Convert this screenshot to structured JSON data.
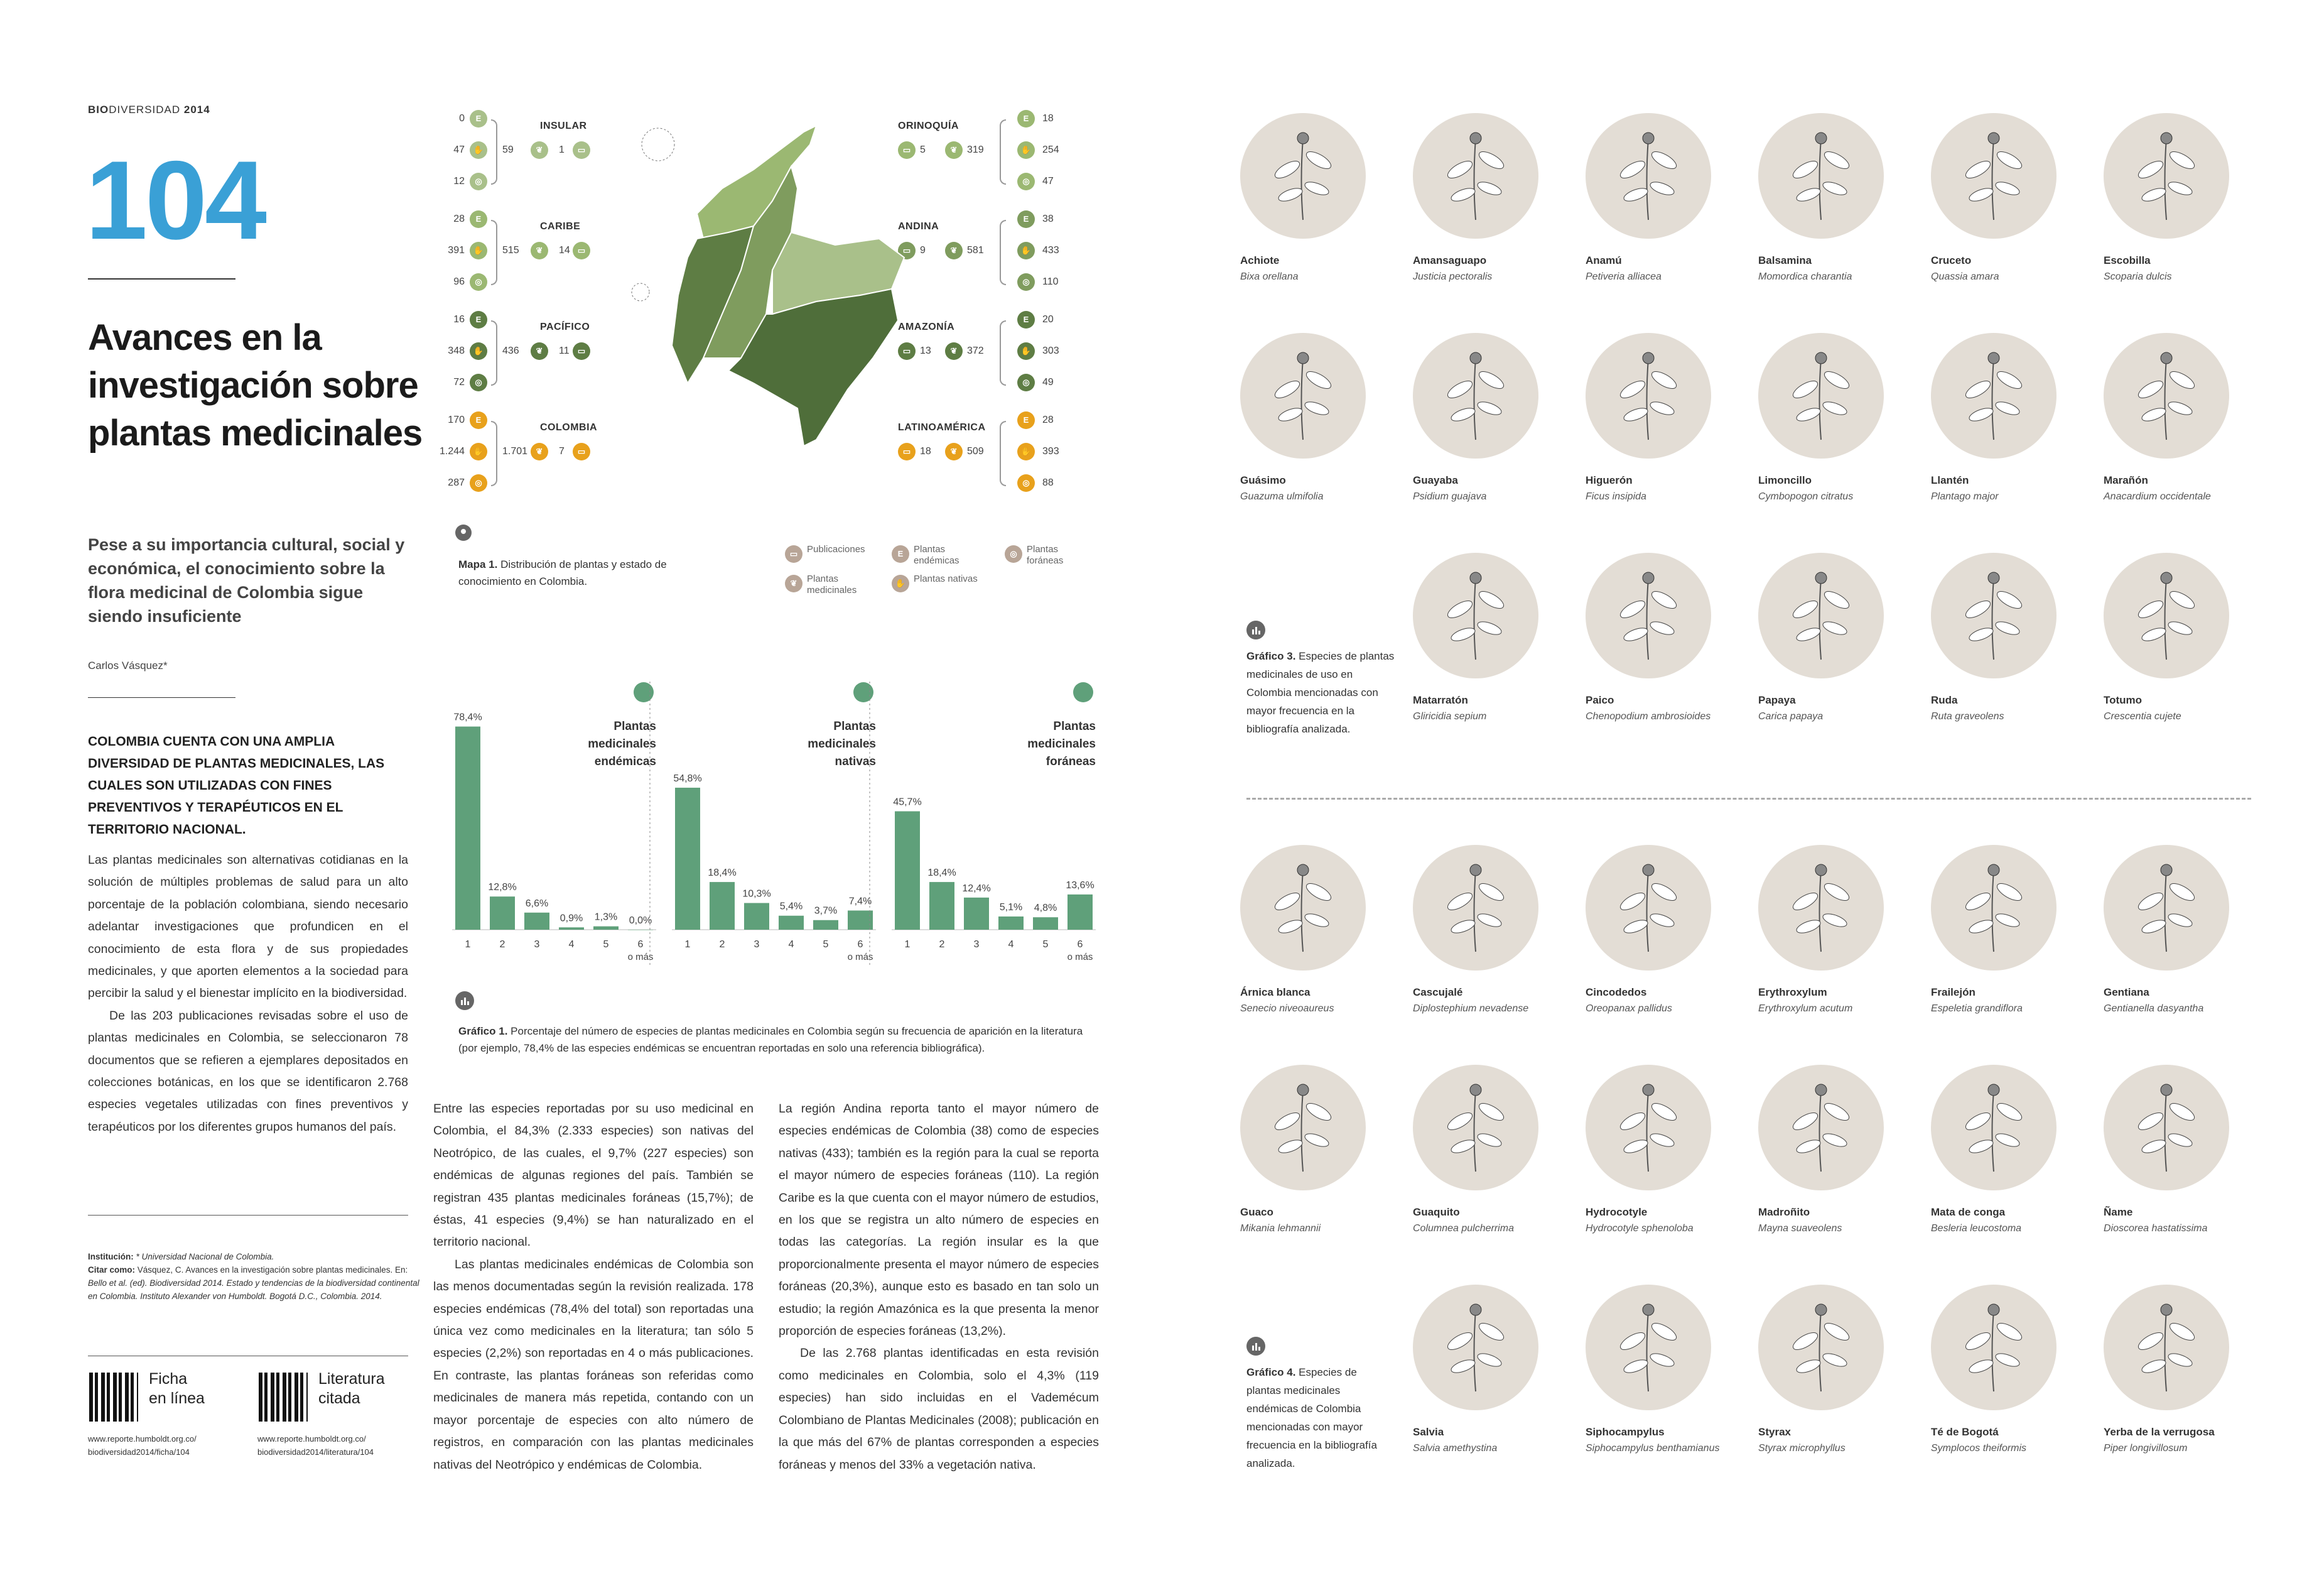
{
  "header": {
    "runhead_bold": "BIO",
    "runhead_rest": "DIVERSIDAD",
    "year": "2014",
    "page_number": "104"
  },
  "article": {
    "title": "Avances en la investigación sobre plantas medicinales",
    "subtitle": "Pese a su importancia cultural, social y económica, el conocimiento sobre la flora medicinal de Colombia sigue siendo insuficiente",
    "author": "Carlos Vásquez*",
    "lead": "COLOMBIA CUENTA CON UNA AMPLIA DIVERSIDAD DE PLANTAS MEDICINALES, LAS CUALES SON UTILIZADAS CON FINES PREVENTIVOS Y TERAPÉUTICOS EN EL TERRITORIO NACIONAL.",
    "col1_p1": "Las plantas medicinales son alternativas cotidianas en la solución de múltiples problemas de salud para un alto porcentaje de la población colombiana, siendo necesario adelantar investigaciones que profundicen en el conocimiento de esta flora y de sus propiedades medicinales, y que aporten elementos a la sociedad para percibir la salud y el bienestar implícito en la biodiversidad.",
    "col1_p2": "De las 203 publicaciones revisadas sobre el uso de plantas medicinales en Colombia, se seleccionaron 78 documentos que se refieren a ejemplares depositados en colecciones botánicas, en los que se identificaron 2.768 especies vegetales utilizadas con fines preventivos y terapéuticos por los diferentes grupos humanos del país.",
    "col2_p1": "Entre las especies reportadas por su uso medicinal en Colombia, el 84,3% (2.333 especies) son nativas del Neotrópico, de las cuales, el 9,7% (227 especies) son endémicas de algunas regiones del país. También se registran 435 plantas medicinales foráneas (15,7%); de éstas, 41 especies (9,4%) se han naturalizado en el territorio nacional.",
    "col2_p2": "Las plantas medicinales endémicas de Colombia son las menos documentadas según la revisión realizada. 178 especies endémicas (78,4% del total) son reportadas una única vez como medicinales en la literatura; tan sólo 5 especies (2,2%) son reportadas en 4 o más publicaciones. En contraste, las plantas foráneas son referidas como medicinales de manera más repetida, contando con un mayor porcentaje de especies con alto número de registros, en comparación con las plantas medicinales nativas del Neotrópico y endémicas de Colombia.",
    "col3_p1": "La región Andina reporta tanto el mayor número de especies endémicas de Colombia (38) como de especies nativas (433); también es la región para la cual se reporta el mayor número de especies foráneas (110). La región Caribe es la que cuenta con el mayor número de estudios, en los que se registra un alto número de especies en todas las categorías. La región insular es la que proporcionalmente presenta el mayor número de especies foráneas (20,3%), aunque esto es basado en tan solo un estudio; la región Amazónica es la que presenta la menor proporción de especies foráneas (13,2%).",
    "col3_p2": "De las 2.768 plantas identificadas en esta revisión como medicinales en Colombia, solo el 4,3% (119 especies) han sido incluidas en el Vademécum Colombiano de Plantas Medicinales (2008); publicación en la que más del 67% de plantas corresponden a especies foráneas y menos del 33% a vegetación nativa."
  },
  "credits": {
    "inst_label": "Institución:",
    "inst_value": "* Universidad Nacional de Colombia.",
    "cite_label": "Citar como:",
    "cite_line1": "Vásquez, C. Avances en la investigación sobre plantas medicinales. En:",
    "cite_line2": "Bello et al. (ed). Biodiversidad 2014. Estado y tendencias de la biodiversidad continental",
    "cite_line3": "en Colombia. Instituto Alexander von Humboldt. Bogotá D.C., Colombia. 2014."
  },
  "qr": [
    {
      "label1": "Ficha",
      "label2": "en línea",
      "url1": "www.reporte.humboldt.org.co/",
      "url2": "biodiversidad2014/ficha/104"
    },
    {
      "label1": "Literatura",
      "label2": "citada",
      "url1": "www.reporte.humboldt.org.co/",
      "url2": "biodiversidad2014/literatura/104"
    }
  ],
  "map": {
    "caption_bold": "Mapa 1.",
    "caption": "Distribución de plantas y estado de conocimiento en Colombia.",
    "legend": [
      {
        "icon": "book-icon",
        "label": "Publicaciones"
      },
      {
        "icon": "endemic-icon",
        "label": "Plantas endémicas"
      },
      {
        "icon": "globe-icon",
        "label": "Plantas foráneas"
      },
      {
        "icon": "leaf-icon",
        "label": "Plantas medicinales"
      },
      {
        "icon": "native-icon",
        "label": "Plantas nativas"
      }
    ],
    "left_regions": [
      {
        "name": "INSULAR",
        "endemic": "0",
        "native": "47",
        "foreign": "12",
        "medicinal": "59",
        "publications": "1",
        "color": "#a9c08a"
      },
      {
        "name": "CARIBE",
        "endemic": "28",
        "native": "391",
        "foreign": "96",
        "medicinal": "515",
        "publications": "14",
        "color": "#9bb872"
      },
      {
        "name": "PACÍFICO",
        "endemic": "16",
        "native": "348",
        "foreign": "72",
        "medicinal": "436",
        "publications": "11",
        "color": "#5e7d44"
      },
      {
        "name": "COLOMBIA",
        "endemic": "170",
        "native": "1.244",
        "foreign": "287",
        "medicinal": "1.701",
        "publications": "7",
        "color": "#e8a11c"
      }
    ],
    "right_regions": [
      {
        "name": "ORINOQUÍA",
        "endemic": "18",
        "native": "254",
        "foreign": "47",
        "medicinal": "319",
        "publications": "5",
        "color": "#9bb872"
      },
      {
        "name": "ANDINA",
        "endemic": "38",
        "native": "433",
        "foreign": "110",
        "medicinal": "581",
        "publications": "9",
        "color": "#7f9c5e"
      },
      {
        "name": "AMAZONÍA",
        "endemic": "20",
        "native": "303",
        "foreign": "49",
        "medicinal": "372",
        "publications": "13",
        "color": "#5e7d44"
      },
      {
        "name": "LATINOAMÉRICA",
        "endemic": "28",
        "native": "393",
        "foreign": "88",
        "medicinal": "509",
        "publications": "18",
        "color": "#e8a11c"
      }
    ]
  },
  "chart_data": [
    {
      "type": "bar",
      "title": "Plantas medicinales endémicas",
      "categories": [
        "1",
        "2",
        "3",
        "4",
        "5",
        "6"
      ],
      "values": [
        78.4,
        12.8,
        6.6,
        0.9,
        1.3,
        0.0
      ],
      "labels": [
        "78,4%",
        "12,8%",
        "6,6%",
        "0,9%",
        "1,3%",
        "0,0%"
      ],
      "last_suffix": "o más",
      "ylim": [
        0,
        80
      ]
    },
    {
      "type": "bar",
      "title": "Plantas medicinales nativas",
      "categories": [
        "1",
        "2",
        "3",
        "4",
        "5",
        "6"
      ],
      "values": [
        54.8,
        18.4,
        10.3,
        5.4,
        3.7,
        7.4
      ],
      "labels": [
        "54,8%",
        "18,4%",
        "10,3%",
        "5,4%",
        "3,7%",
        "7,4%"
      ],
      "last_suffix": "o más",
      "ylim": [
        0,
        80
      ]
    },
    {
      "type": "bar",
      "title": "Plantas medicinales foráneas",
      "categories": [
        "1",
        "2",
        "3",
        "4",
        "5",
        "6"
      ],
      "values": [
        45.7,
        18.4,
        12.4,
        5.1,
        4.8,
        13.6
      ],
      "labels": [
        "45,7%",
        "18,4%",
        "12,4%",
        "5,1%",
        "4,8%",
        "13,6%"
      ],
      "last_suffix": "o más",
      "ylim": [
        0,
        80
      ]
    }
  ],
  "chart_titles": [
    {
      "l1": "Plantas",
      "l2": "medicinales",
      "l3": "endémicas",
      "icon": "E"
    },
    {
      "l1": "Plantas",
      "l2": "medicinales",
      "l3": "nativas",
      "icon": ""
    },
    {
      "l1": "Plantas",
      "l2": "medicinales",
      "l3": "foráneas",
      "icon": ""
    }
  ],
  "grafico1": {
    "bold": "Gráfico 1.",
    "text": "Porcentaje del número de especies de plantas medicinales en Colombia según su frecuencia de aparición en la literatura (por ejemplo, 78,4% de las especies endémicas se encuentran reportadas en solo una referencia bibliográfica)."
  },
  "grafico3": {
    "bold": "Gráfico 3.",
    "text": "Especies de plantas medicinales de uso en Colombia mencionadas con mayor frecuencia en la bibliografía analizada."
  },
  "grafico4": {
    "bold": "Gráfico 4.",
    "text": "Especies de plantas medicinales endémicas de Colombia mencionadas con mayor frecuencia en la bibliografía analizada."
  },
  "plants_top": [
    {
      "name": "Achiote",
      "sci": "Bixa orellana"
    },
    {
      "name": "Amansaguapo",
      "sci": "Justicia pectoralis"
    },
    {
      "name": "Anamú",
      "sci": "Petiveria alliacea"
    },
    {
      "name": "Balsamina",
      "sci": "Momordica charantia"
    },
    {
      "name": "Cruceto",
      "sci": "Quassia amara"
    },
    {
      "name": "Escobilla",
      "sci": "Scoparia dulcis"
    },
    {
      "name": "Guásimo",
      "sci": "Guazuma ulmifolia"
    },
    {
      "name": "Guayaba",
      "sci": "Psidium guajava"
    },
    {
      "name": "Higuerón",
      "sci": "Ficus insipida"
    },
    {
      "name": "Limoncillo",
      "sci": "Cymbopogon citratus"
    },
    {
      "name": "Llantén",
      "sci": "Plantago major"
    },
    {
      "name": "Marañón",
      "sci": "Anacardium occidentale"
    },
    {
      "name": "Matarratón",
      "sci": "Gliricidia sepium"
    },
    {
      "name": "Paico",
      "sci": "Chenopodium ambrosioides"
    },
    {
      "name": "Papaya",
      "sci": "Carica papaya"
    },
    {
      "name": "Ruda",
      "sci": "Ruta graveolens"
    },
    {
      "name": "Totumo",
      "sci": "Crescentia cujete"
    }
  ],
  "plants_bottom": [
    {
      "name": "Árnica blanca",
      "sci": "Senecio niveoaureus"
    },
    {
      "name": "Cascujalé",
      "sci": "Diplostephium nevadense"
    },
    {
      "name": "Cincodedos",
      "sci": "Oreopanax pallidus"
    },
    {
      "name": "Erythroxylum",
      "sci": "Erythroxylum acutum"
    },
    {
      "name": "Frailejón",
      "sci": "Espeletia grandiflora"
    },
    {
      "name": "Gentiana",
      "sci": "Gentianella dasyantha"
    },
    {
      "name": "Guaco",
      "sci": "Mikania lehmannii"
    },
    {
      "name": "Guaquito",
      "sci": "Columnea pulcherrima"
    },
    {
      "name": "Hydrocotyle",
      "sci": "Hydrocotyle sphenoloba"
    },
    {
      "name": "Madroñito",
      "sci": "Mayna suaveolens"
    },
    {
      "name": "Mata de conga",
      "sci": "Besleria leucostoma"
    },
    {
      "name": "Ñame",
      "sci": "Dioscorea hastatissima"
    },
    {
      "name": "Salvia",
      "sci": "Salvia amethystina"
    },
    {
      "name": "Siphocampylus",
      "sci": "Siphocampylus benthamianus"
    },
    {
      "name": "Styrax",
      "sci": "Styrax microphyllus"
    },
    {
      "name": "Té de Bogotá",
      "sci": "Symplocos theiformis"
    },
    {
      "name": "Yerba de la verrugosa",
      "sci": "Piper longivillosum"
    }
  ]
}
